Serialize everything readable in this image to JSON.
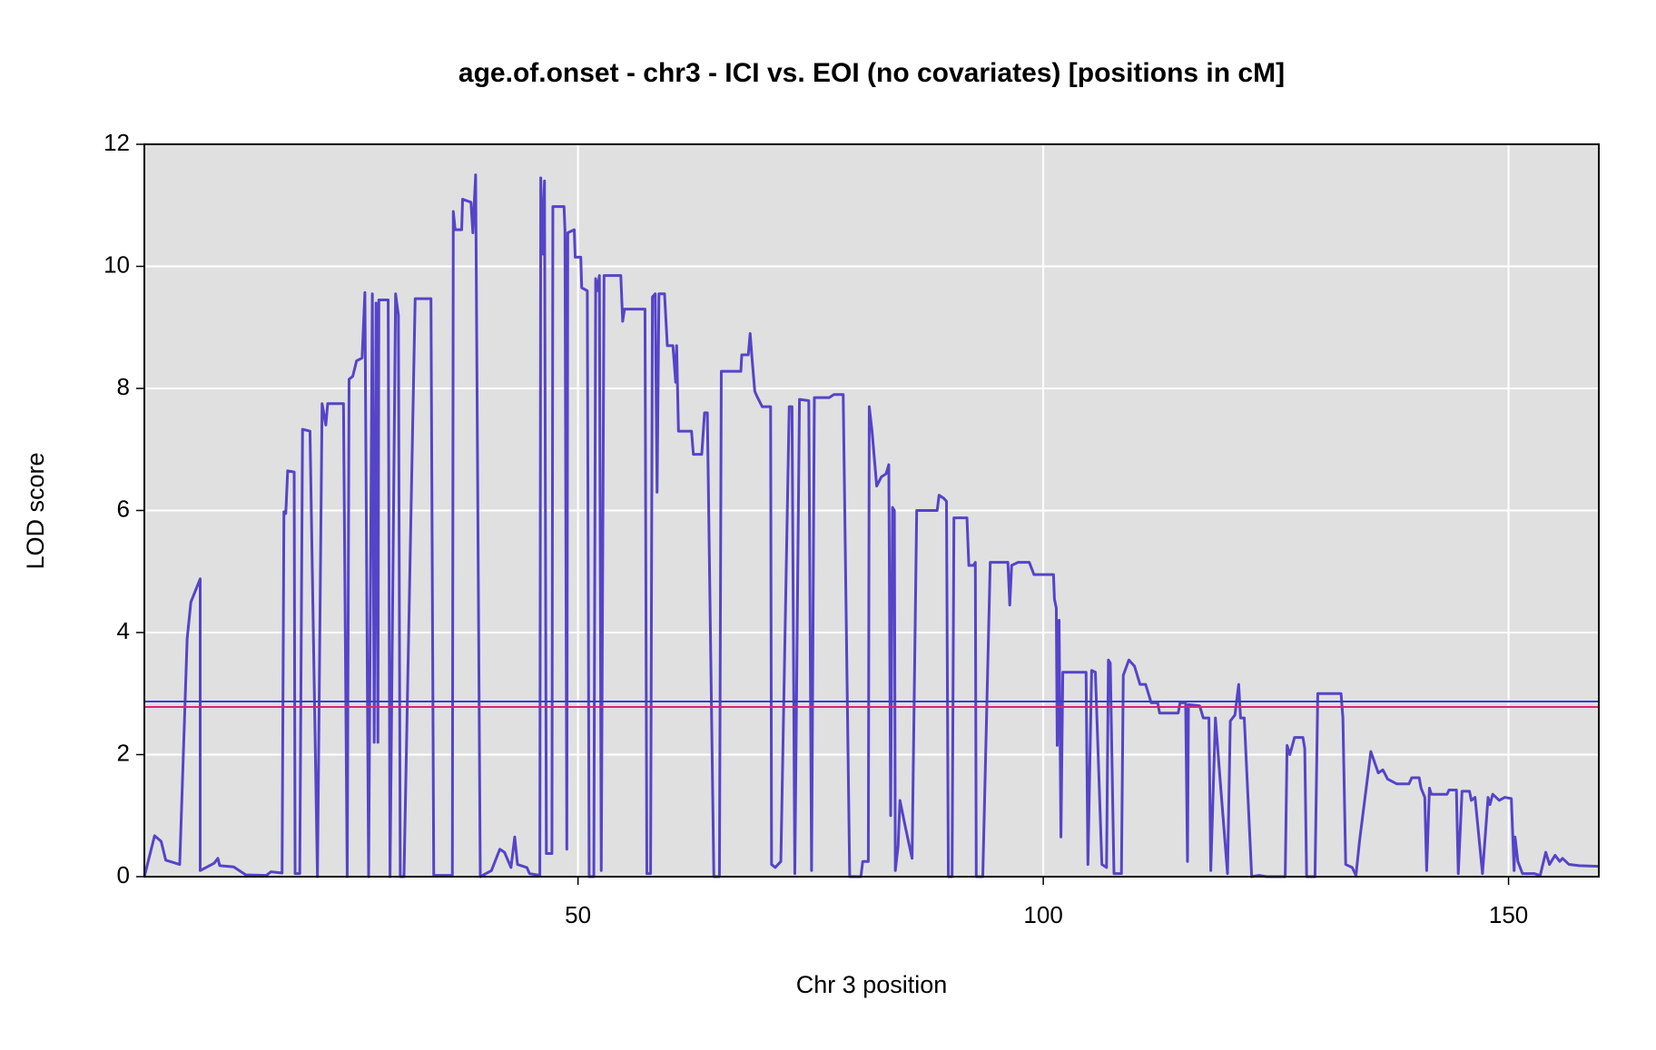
{
  "chart_data": {
    "type": "line",
    "title": "age.of.onset - chr3 - ICI vs. EOI (no covariates) [positions in cM]",
    "x_label": "Chr 3 position",
    "y_label": "LOD score",
    "xlim": [
      3.4,
      159.7
    ],
    "ylim": [
      0,
      12
    ],
    "xticks": [
      50,
      100,
      150
    ],
    "yticks": [
      0,
      2,
      4,
      6,
      8,
      10,
      12
    ],
    "grid": true,
    "background": "#e0e0e0",
    "hlines": [
      {
        "value": 2.87,
        "color": "#3b3bd6"
      },
      {
        "value": 2.78,
        "color": "#e0207a"
      }
    ],
    "x": [
      3.4,
      4.5,
      5.2,
      5.7,
      7.2,
      8.0,
      8.4,
      9.4,
      9.4,
      10.9,
      11.3,
      11.5,
      13.0,
      14.3,
      16.5,
      17.0,
      18.2,
      18.4,
      18.6,
      18.8,
      19.5,
      19.6,
      20.1,
      20.4,
      21.2,
      22.0,
      22.5,
      22.9,
      23.1,
      24.8,
      25.2,
      25.4,
      25.8,
      26.2,
      26.8,
      27.1,
      27.5,
      27.9,
      28.1,
      28.3,
      28.5,
      28.6,
      29.6,
      29.8,
      30.4,
      30.7,
      30.9,
      31.3,
      32.5,
      34.2,
      34.5,
      36.5,
      36.6,
      36.8,
      37.5,
      37.6,
      38.5,
      38.7,
      39.0,
      39.5,
      40.7,
      41.6,
      42.1,
      42.8,
      43.2,
      43.5,
      44.5,
      44.8,
      45.9,
      46.0,
      46.2,
      46.4,
      46.6,
      47.2,
      47.3,
      48.5,
      48.6,
      48.8,
      48.9,
      49.6,
      49.7,
      50.3,
      50.4,
      51.0,
      51.2,
      51.7,
      51.9,
      52.1,
      52.3,
      52.5,
      52.8,
      54.6,
      54.8,
      55.0,
      57.2,
      57.4,
      57.8,
      58.0,
      58.3,
      58.5,
      58.7,
      59.3,
      59.6,
      60.2,
      60.5,
      60.6,
      60.8,
      62.2,
      62.4,
      63.3,
      63.6,
      63.9,
      64.6,
      65.2,
      65.4,
      67.5,
      67.6,
      68.3,
      68.5,
      68.7,
      69.0,
      69.3,
      69.8,
      70.7,
      70.8,
      71.2,
      71.8,
      72.7,
      73.0,
      73.3,
      73.8,
      74.8,
      75.1,
      75.4,
      76.5,
      77.0,
      77.5,
      78.5,
      79.2,
      80.4,
      80.6,
      81.2,
      81.3,
      81.6,
      82.1,
      82.6,
      83.1,
      83.4,
      83.6,
      83.8,
      84.0,
      84.1,
      84.4,
      84.6,
      85.2,
      85.9,
      86.4,
      88.6,
      88.8,
      89.3,
      89.6,
      89.8,
      90.2,
      90.4,
      91.8,
      92.0,
      92.5,
      92.7,
      92.8,
      93.5,
      94.3,
      96.2,
      96.4,
      96.6,
      97.3,
      98.5,
      99.0,
      101.1,
      101.2,
      101.4,
      101.5,
      101.7,
      101.9,
      102.1,
      104.6,
      104.8,
      105.2,
      105.6,
      106.3,
      106.8,
      107.0,
      107.2,
      107.6,
      108.4,
      108.6,
      109.2,
      109.8,
      110.4,
      111.0,
      111.6,
      112.3,
      112.5,
      114.5,
      114.7,
      115.3,
      115.5,
      115.6,
      116.8,
      117.2,
      117.8,
      118.0,
      118.5,
      119.0,
      119.8,
      120.1,
      120.6,
      121.0,
      121.2,
      121.6,
      122.4,
      123.2,
      124.0,
      126.0,
      126.2,
      126.5,
      127.0,
      127.9,
      128.1,
      128.3,
      129.2,
      129.5,
      132.0,
      132.2,
      132.5,
      133.2,
      133.6,
      134.0,
      135.2,
      136.0,
      136.5,
      137.0,
      138.0,
      139.3,
      139.6,
      140.4,
      140.6,
      141.0,
      141.2,
      141.5,
      141.7,
      143.4,
      143.6,
      144.4,
      144.6,
      145.0,
      145.8,
      146.0,
      146.4,
      147.2,
      147.8,
      148.0,
      148.3,
      149.0,
      149.6,
      150.3,
      150.6,
      150.7,
      151.0,
      151.5,
      152.8,
      153.4,
      154.0,
      154.4,
      155.0,
      155.5,
      155.8,
      156.5,
      157.6,
      159.7
    ],
    "series": [
      {
        "color": "#5544c8",
        "values": [
          0,
          0.67,
          0.58,
          0.27,
          0.2,
          3.9,
          4.5,
          4.88,
          0.1,
          0.22,
          0.3,
          0.18,
          0.16,
          0.03,
          0.02,
          0.08,
          0.06,
          5.98,
          5.95,
          6.65,
          6.63,
          0.05,
          0.05,
          7.33,
          7.3,
          0,
          7.75,
          7.4,
          7.75,
          7.75,
          0,
          8.15,
          8.2,
          8.45,
          8.5,
          9.57,
          0,
          9.55,
          2.2,
          9.4,
          2.2,
          9.45,
          9.45,
          0,
          9.55,
          9.2,
          0,
          0,
          9.47,
          9.47,
          0.02,
          0.02,
          10.9,
          10.6,
          10.6,
          11.1,
          11.05,
          10.55,
          11.5,
          0,
          0.1,
          0.45,
          0.4,
          0.15,
          0.65,
          0.2,
          0.15,
          0.05,
          0.02,
          11.45,
          10.2,
          11.4,
          0.38,
          0.38,
          10.98,
          10.98,
          10.6,
          0.45,
          10.55,
          10.6,
          10.15,
          10.15,
          9.65,
          9.6,
          0,
          0,
          9.8,
          9.6,
          9.85,
          0.1,
          9.85,
          9.85,
          9.1,
          9.3,
          9.3,
          0.05,
          0.05,
          9.5,
          9.55,
          6.3,
          9.55,
          9.55,
          8.7,
          8.7,
          8.1,
          8.7,
          7.3,
          7.3,
          6.92,
          6.92,
          7.6,
          7.6,
          0,
          0,
          8.28,
          8.28,
          8.55,
          8.55,
          8.9,
          8.5,
          7.95,
          7.85,
          7.7,
          7.7,
          0.2,
          0.15,
          0.25,
          7.7,
          7.7,
          0.05,
          7.82,
          7.8,
          0.1,
          7.85,
          7.85,
          7.85,
          7.9,
          7.9,
          0,
          0,
          0.25,
          0.25,
          7.7,
          7.3,
          6.4,
          6.55,
          6.6,
          6.75,
          1.0,
          6.05,
          6.0,
          0.1,
          0.5,
          1.25,
          0.8,
          0.3,
          6.0,
          6.0,
          6.25,
          6.2,
          6.15,
          0,
          0,
          5.88,
          5.88,
          5.1,
          5.1,
          5.15,
          0,
          0,
          5.15,
          5.15,
          4.45,
          5.1,
          5.15,
          5.15,
          4.95,
          4.95,
          4.55,
          4.4,
          2.15,
          4.2,
          0.65,
          3.35,
          3.35,
          0.2,
          3.38,
          3.35,
          0.2,
          0.15,
          3.55,
          3.5,
          0.05,
          0.05,
          3.3,
          3.55,
          3.45,
          3.15,
          3.15,
          2.85,
          2.85,
          2.68,
          2.68,
          2.85,
          2.85,
          0.25,
          2.82,
          2.8,
          2.6,
          2.6,
          0.1,
          2.6,
          1.6,
          0.05,
          2.55,
          2.65,
          3.15,
          2.6,
          2.6,
          0,
          0.02,
          0,
          0,
          2.15,
          2.0,
          2.28,
          2.28,
          2.1,
          0,
          0,
          3.0,
          3.0,
          2.6,
          0.2,
          0.15,
          0.02,
          0.6,
          2.05,
          1.7,
          1.75,
          1.6,
          1.52,
          1.52,
          1.62,
          1.62,
          1.45,
          1.3,
          0.1,
          1.45,
          1.35,
          1.35,
          1.42,
          1.42,
          0.05,
          1.4,
          1.4,
          1.25,
          1.3,
          0.05,
          1.3,
          1.18,
          1.35,
          1.25,
          1.3,
          1.28,
          0.1,
          0.65,
          0.25,
          0.05,
          0.05,
          0.02,
          0.4,
          0.2,
          0.35,
          0.25,
          0.3,
          0.2,
          0.18,
          0.17
        ]
      }
    ]
  }
}
